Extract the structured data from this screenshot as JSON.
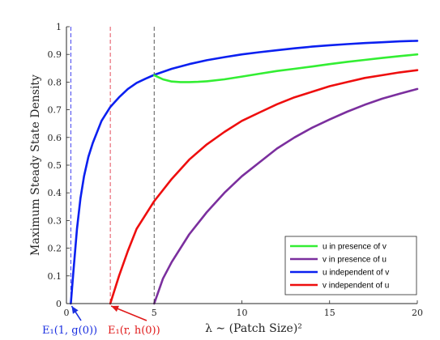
{
  "chart_data": {
    "type": "line",
    "title": "",
    "xlabel": "λ ∼ (Patch Size)²",
    "ylabel": "Maximum Steady State Density",
    "xlim": [
      0,
      20
    ],
    "ylim": [
      0,
      1
    ],
    "xticks": [
      "0",
      "5",
      "10",
      "15",
      "20"
    ],
    "yticks": [
      "0",
      "0.1",
      "0.2",
      "0.3",
      "0.4",
      "0.5",
      "0.6",
      "0.7",
      "0.8",
      "0.9",
      "1"
    ],
    "grid": false,
    "legend_position": "bottom-right",
    "series": [
      {
        "name": "u in presence of v",
        "color": "#33ee33",
        "x": [
          5,
          5.5,
          6,
          6.5,
          7,
          7.5,
          8,
          9,
          10,
          11,
          12,
          13,
          14,
          15,
          16,
          17,
          18,
          19,
          20
        ],
        "y": [
          0.825,
          0.81,
          0.802,
          0.8,
          0.8,
          0.801,
          0.803,
          0.81,
          0.82,
          0.83,
          0.84,
          0.848,
          0.856,
          0.865,
          0.873,
          0.88,
          0.887,
          0.894,
          0.9
        ]
      },
      {
        "name": "v in presence of u",
        "color": "#7b2f9e",
        "x": [
          5,
          5.5,
          6,
          7,
          8,
          9,
          10,
          11,
          12,
          13,
          14,
          15,
          16,
          17,
          18,
          19,
          20
        ],
        "y": [
          0,
          0.09,
          0.15,
          0.25,
          0.33,
          0.4,
          0.46,
          0.51,
          0.56,
          0.6,
          0.635,
          0.665,
          0.693,
          0.718,
          0.74,
          0.758,
          0.775
        ]
      },
      {
        "name": "u independent of v",
        "color": "#0b20f0",
        "x": [
          0.25,
          0.4,
          0.6,
          0.8,
          1,
          1.25,
          1.5,
          2,
          2.5,
          3,
          3.5,
          4,
          4.5,
          5,
          6,
          7,
          8,
          9,
          10,
          11,
          12,
          13,
          14,
          15,
          16,
          17,
          18,
          19,
          20
        ],
        "y": [
          0,
          0.12,
          0.27,
          0.38,
          0.46,
          0.53,
          0.58,
          0.66,
          0.71,
          0.745,
          0.775,
          0.797,
          0.812,
          0.826,
          0.848,
          0.865,
          0.879,
          0.89,
          0.9,
          0.908,
          0.915,
          0.922,
          0.928,
          0.933,
          0.937,
          0.941,
          0.944,
          0.947,
          0.949
        ]
      },
      {
        "name": "v independent of u",
        "color": "#ee0e0e",
        "x": [
          2.5,
          3,
          3.5,
          4,
          5,
          6,
          7,
          8,
          9,
          10,
          11,
          12,
          13,
          14,
          15,
          16,
          17,
          18,
          19,
          20
        ],
        "y": [
          0,
          0.1,
          0.19,
          0.27,
          0.37,
          0.45,
          0.52,
          0.575,
          0.62,
          0.66,
          0.69,
          0.72,
          0.745,
          0.765,
          0.785,
          0.8,
          0.815,
          0.825,
          0.835,
          0.843
        ]
      }
    ],
    "vlines": [
      {
        "x": 0.25,
        "color": "#3030ee"
      },
      {
        "x": 2.5,
        "color": "#e03a4a"
      },
      {
        "x": 5,
        "color": "#444444"
      }
    ],
    "annotations": [
      {
        "text": "E₁(1, g(0))",
        "x": 0.25,
        "color": "#1a2fe0"
      },
      {
        "text": "E₁(r, h(0))",
        "x": 2.5,
        "color": "#e01a1a"
      }
    ]
  }
}
